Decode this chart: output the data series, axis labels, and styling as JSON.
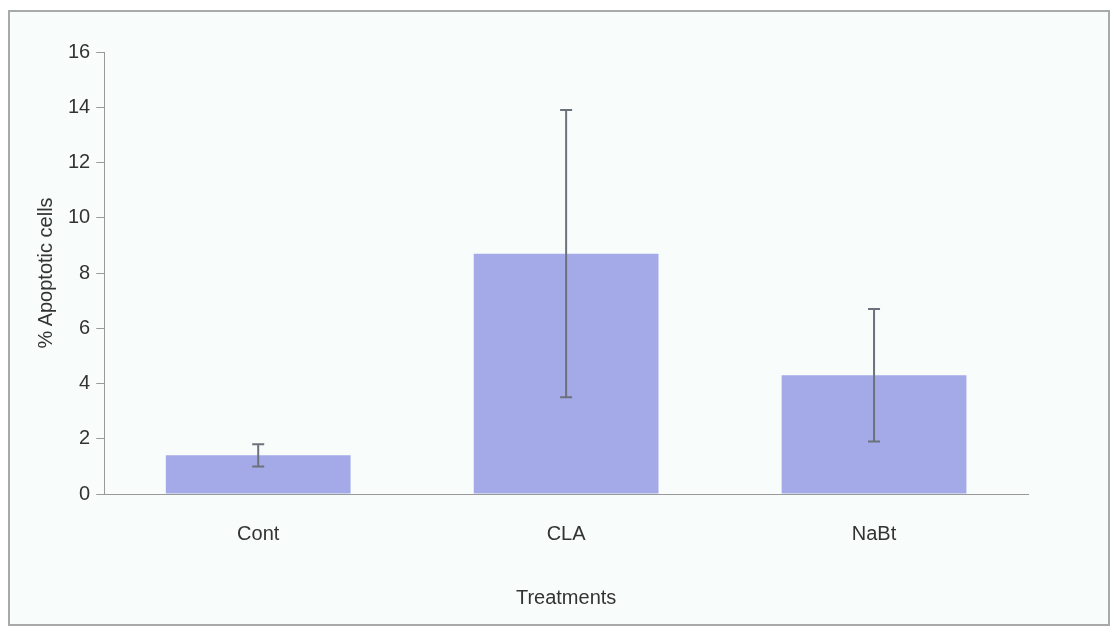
{
  "chart_data": {
    "type": "bar",
    "xlabel": "Treatments",
    "ylabel": "% Apoptotic cells",
    "categories": [
      "Cont",
      "CLA",
      "NaBt"
    ],
    "values": [
      1.4,
      8.7,
      4.3
    ],
    "errors": [
      0.4,
      5.2,
      2.4
    ],
    "color": "#a4aae8",
    "ylim": [
      0,
      16
    ],
    "yticks": [
      0,
      2,
      4,
      6,
      8,
      10,
      12,
      14,
      16
    ],
    "grid": false,
    "legend": false
  }
}
